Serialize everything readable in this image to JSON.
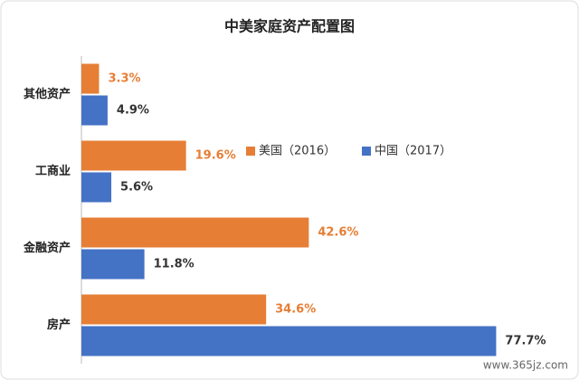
{
  "chart_data": {
    "type": "bar",
    "orientation": "horizontal",
    "title": "中美家庭资产配置图",
    "categories": [
      "其他资产",
      "工商业",
      "金融资产",
      "房产"
    ],
    "series": [
      {
        "name": "美国（2016）",
        "color": "#e67e35",
        "values": [
          3.3,
          19.6,
          42.6,
          34.6
        ],
        "value_labels": [
          "3.3%",
          "19.6%",
          "42.6%",
          "34.6%"
        ]
      },
      {
        "name": "中国（2017）",
        "color": "#4472c4",
        "values": [
          4.9,
          5.6,
          11.8,
          77.7
        ],
        "value_labels": [
          "4.9%",
          "5.6%",
          "11.8%",
          "77.7%"
        ]
      }
    ],
    "legend": "center",
    "watermark": "www.365jz.com"
  }
}
